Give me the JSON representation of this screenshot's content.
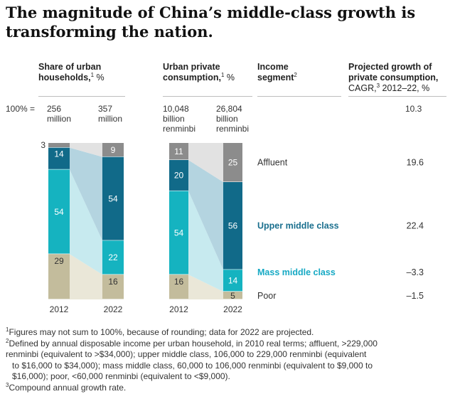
{
  "title": "The magnitude of China’s middle-class growth is transforming the nation.",
  "headers": {
    "share_l1": "Share of urban",
    "share_l2": "households,",
    "share_sup": "1",
    "share_unit": " %",
    "cons_l1": "Urban private",
    "cons_l2": "consumption,",
    "cons_sup": "1",
    "cons_unit": " %",
    "seg_l1": "Income",
    "seg_l2": "segment",
    "seg_sup": "2",
    "proj_l1": "Projected growth of",
    "proj_l2": "private consumption,",
    "proj_l3a": "CAGR,",
    "proj_sup": "3",
    "proj_l3b": " 2012–22, %"
  },
  "totals": {
    "label": "100% =",
    "hh_2012_a": "256",
    "hh_2012_b": "million",
    "hh_2022_a": "357",
    "hh_2022_b": "million",
    "cons_2012_a": "10,048",
    "cons_2012_b": "billion",
    "cons_2012_c": "renminbi",
    "cons_2022_a": "26,804",
    "cons_2022_b": "billion",
    "cons_2022_c": "renminbi"
  },
  "colors": {
    "poor": "#c3bc9c",
    "mass": "#15b3c0",
    "upper": "#116a89",
    "affluent": "#8c8c8c",
    "flow_poor": "#eae7d8",
    "flow_mass": "#c7eaef",
    "flow_upper": "#b4d4e0",
    "flow_affluent": "#e2e2e2",
    "label_upper": "#1a6f8e",
    "label_mass": "#16a9c4"
  },
  "chart_data": [
    {
      "type": "bar",
      "title": "Share of urban households, %",
      "categories": [
        "2012",
        "2022"
      ],
      "series": [
        {
          "name": "Poor",
          "values": [
            29,
            16
          ]
        },
        {
          "name": "Mass middle class",
          "values": [
            54,
            22
          ]
        },
        {
          "name": "Upper middle class",
          "values": [
            14,
            54
          ]
        },
        {
          "name": "Affluent",
          "values": [
            3,
            9
          ]
        }
      ]
    },
    {
      "type": "bar",
      "title": "Urban private consumption, %",
      "categories": [
        "2012",
        "2022"
      ],
      "series": [
        {
          "name": "Poor",
          "values": [
            16,
            5
          ]
        },
        {
          "name": "Mass middle class",
          "values": [
            54,
            14
          ]
        },
        {
          "name": "Upper middle class",
          "values": [
            20,
            56
          ]
        },
        {
          "name": "Affluent",
          "values": [
            11,
            25
          ]
        }
      ]
    }
  ],
  "segments": [
    {
      "key": "affluent",
      "label": "Affluent",
      "cagr": "19.6"
    },
    {
      "key": "upper",
      "label": "Upper middle class",
      "cagr": "22.4"
    },
    {
      "key": "mass",
      "label": "Mass middle class",
      "cagr": "–3.3"
    },
    {
      "key": "poor",
      "label": "Poor",
      "cagr": "–1.5"
    }
  ],
  "total_cagr": "10.3",
  "footnotes": {
    "n1_sup": "1",
    "n1": "Figures may not sum to 100%, because of rounding; data for 2022 are projected.",
    "n2_sup": "2",
    "n2_a": "Defined by annual disposable income per urban household, in 2010 real terms; affluent, >229,000",
    "n2_b": "renminbi (equivalent to >$34,000); upper middle class, 106,000 to 229,000 renminbi (equivalent",
    "n2_c": "to $16,000 to $34,000); mass middle class, 60,000 to 106,000 renminbi (equivalent to $9,000 to",
    "n2_d": "$16,000); poor, <60,000 renminbi (equivalent to <$9,000).",
    "n3_sup": "3",
    "n3": "Compound annual growth rate."
  }
}
